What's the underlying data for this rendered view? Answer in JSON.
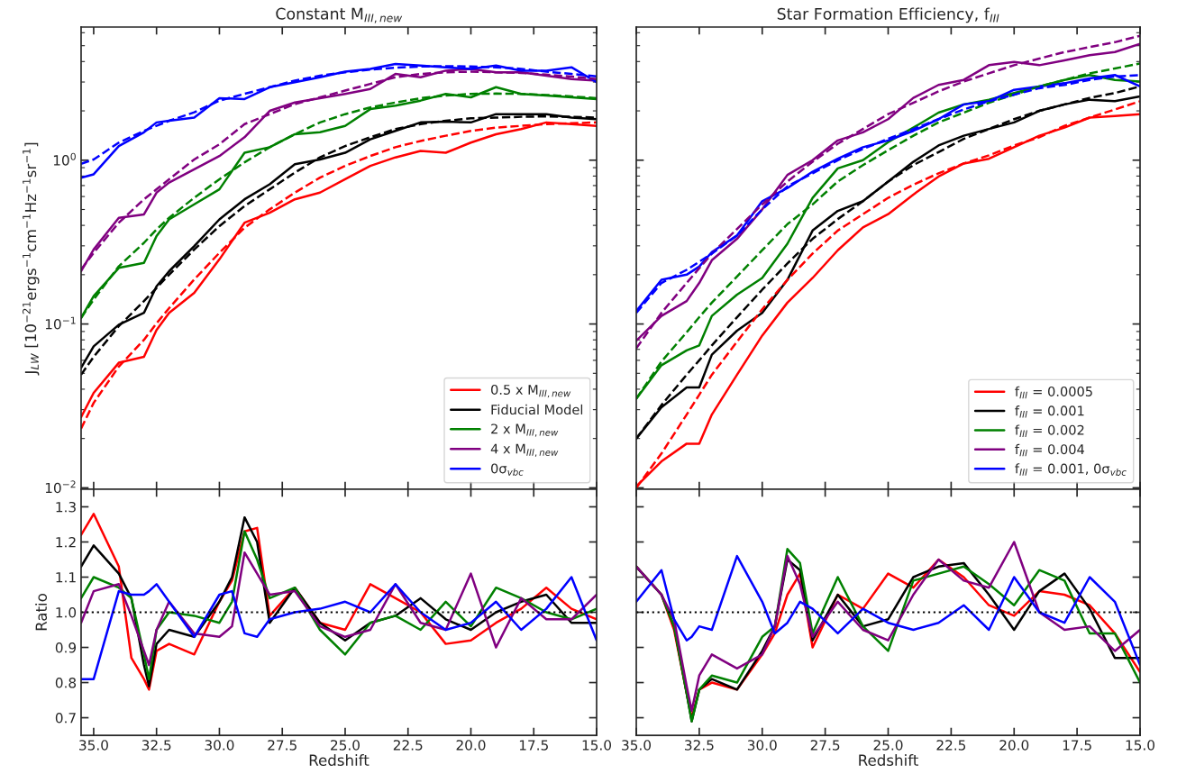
{
  "chart_data": [
    {
      "type": "line",
      "title": "Constant M$_{III,new}$",
      "ylabel": "J$_{LW}$ [10$^{−21}$ergs$^{−1}$cm$^{−1}$Hz$^{−1}$sr$^{−1}$]",
      "log": true,
      "legend": "bottom right",
      "tick_labels": "y",
      "xlim": [
        35.5,
        15.0
      ],
      "xticks": [
        35.0,
        32.5,
        30.0,
        27.5,
        25.0,
        22.5,
        20.0,
        17.5,
        15.0
      ],
      "ylim": [
        0.0098,
        6.5
      ],
      "yticks": [
        {
          "value": 0.01,
          "label": "10$^{−2}$"
        },
        {
          "value": 0.1,
          "label": "10$^{−1}$"
        },
        {
          "value": 1,
          "label": "10$^{0}$"
        }
      ],
      "x": [
        35.5,
        35,
        34,
        33,
        32.5,
        32,
        31,
        30,
        29,
        28,
        27,
        26,
        25,
        24,
        23,
        22,
        21,
        20,
        19,
        18,
        17,
        16,
        15
      ],
      "series": [
        {
          "name": "0.5 x M$_{III,new}$",
          "color": "#ff0000",
          "values": [
            0.027,
            0.038,
            0.058,
            0.063,
            0.092,
            0.117,
            0.155,
            0.248,
            0.415,
            0.478,
            0.577,
            0.634,
            0.765,
            0.923,
            1.04,
            1.14,
            1.11,
            1.28,
            1.44,
            1.55,
            1.7,
            1.66,
            1.62
          ]
        },
        {
          "name": "Fiducial Model",
          "color": "#000000",
          "values": [
            0.054,
            0.073,
            0.099,
            0.117,
            0.17,
            0.21,
            0.299,
            0.435,
            0.577,
            0.713,
            0.945,
            1.01,
            1.11,
            1.34,
            1.51,
            1.7,
            1.72,
            1.7,
            1.91,
            1.91,
            1.91,
            1.82,
            1.78
          ]
        },
        {
          "name": "2 x M$_{III,new}$",
          "color": "#008000",
          "values": [
            0.109,
            0.148,
            0.22,
            0.236,
            0.344,
            0.435,
            0.538,
            0.664,
            1.11,
            1.2,
            1.44,
            1.48,
            1.62,
            2.05,
            2.15,
            2.31,
            2.54,
            2.42,
            2.79,
            2.54,
            2.48,
            2.42,
            2.36
          ]
        },
        {
          "name": "4 x M$_{III,new}$",
          "color": "#800080",
          "values": [
            0.21,
            0.285,
            0.445,
            0.467,
            0.634,
            0.73,
            0.88,
            1.06,
            1.38,
            2.0,
            2.25,
            2.39,
            2.54,
            2.72,
            3.36,
            3.21,
            3.52,
            3.61,
            3.44,
            3.44,
            3.28,
            3.13,
            3.06
          ]
        },
        {
          "name": "0σ$_{vbc}$",
          "color": "#0000ff",
          "values": [
            0.78,
            0.82,
            1.22,
            1.48,
            1.7,
            1.74,
            1.82,
            2.39,
            2.36,
            2.79,
            2.99,
            3.21,
            3.47,
            3.61,
            3.87,
            3.78,
            3.69,
            3.61,
            3.78,
            3.52,
            3.52,
            3.69,
            2.99
          ]
        },
        {
          "color": "#ff0000",
          "line_style": "dashed",
          "values": [
            0.023,
            0.033,
            0.055,
            0.08,
            0.101,
            0.125,
            0.187,
            0.272,
            0.387,
            0.501,
            0.634,
            0.783,
            0.923,
            1.06,
            1.2,
            1.31,
            1.41,
            1.51,
            1.58,
            1.62,
            1.66,
            1.68,
            1.7
          ]
        },
        {
          "color": "#000000",
          "line_style": "dashed",
          "values": [
            0.049,
            0.063,
            0.097,
            0.138,
            0.166,
            0.2,
            0.285,
            0.396,
            0.525,
            0.664,
            0.84,
            1.04,
            1.22,
            1.38,
            1.55,
            1.66,
            1.74,
            1.8,
            1.82,
            1.84,
            1.85,
            1.84,
            1.82
          ]
        },
        {
          "color": "#008000",
          "line_style": "dashed",
          "values": [
            0.109,
            0.141,
            0.225,
            0.313,
            0.378,
            0.445,
            0.59,
            0.765,
            0.97,
            1.2,
            1.44,
            1.7,
            1.91,
            2.1,
            2.25,
            2.39,
            2.48,
            2.54,
            2.55,
            2.54,
            2.5,
            2.45,
            2.39
          ]
        },
        {
          "color": "#800080",
          "line_style": "dashed",
          "values": [
            0.215,
            0.272,
            0.415,
            0.577,
            0.664,
            0.765,
            1.01,
            1.25,
            1.66,
            1.91,
            2.2,
            2.42,
            2.66,
            2.92,
            3.21,
            3.36,
            3.44,
            3.47,
            3.44,
            3.41,
            3.33,
            3.24,
            3.13
          ]
        },
        {
          "color": "#0000ff",
          "line_style": "dashed",
          "values": [
            0.95,
            1.01,
            1.28,
            1.51,
            1.62,
            1.74,
            1.96,
            2.31,
            2.54,
            2.79,
            3.06,
            3.28,
            3.44,
            3.57,
            3.67,
            3.73,
            3.75,
            3.73,
            3.69,
            3.61,
            3.47,
            3.36,
            3.25
          ]
        }
      ]
    },
    {
      "type": "line",
      "title": "Star Formation Efficiency, f$_{III}$",
      "log": true,
      "legend": "bottom right",
      "tick_labels": false,
      "xlim": [
        35.0,
        15.0
      ],
      "xticks": [
        {
          "value": 35,
          "label": null
        },
        {
          "value": 32.5,
          "label": null
        },
        {
          "value": 30,
          "label": null
        },
        {
          "value": 27.5,
          "label": null
        },
        {
          "value": 25,
          "label": null
        },
        {
          "value": 22.5,
          "label": null
        },
        {
          "value": 20,
          "label": null
        },
        {
          "value": 17.5,
          "label": null
        },
        {
          "value": 15,
          "label": null
        }
      ],
      "ylim": [
        0.0098,
        6.5
      ],
      "yticks": [
        {
          "value": 0.01,
          "label": null
        },
        {
          "value": 0.1,
          "label": null
        },
        {
          "value": 1,
          "label": null
        }
      ],
      "x": [
        35,
        34,
        33,
        32.5,
        32,
        31,
        30,
        29,
        28,
        27,
        26,
        25,
        24,
        23,
        22,
        21,
        20,
        19,
        18,
        17,
        16,
        15
      ],
      "series": [
        {
          "name": "f$_{III}$ = 0.0005",
          "color": "#ff0000",
          "values": [
            0.0102,
            0.0145,
            0.0186,
            0.0186,
            0.028,
            0.049,
            0.085,
            0.135,
            0.191,
            0.282,
            0.389,
            0.468,
            0.617,
            0.794,
            0.955,
            1.02,
            1.2,
            1.41,
            1.58,
            1.82,
            1.86,
            1.91
          ]
        },
        {
          "name": "f$_{III}$ = 0.001",
          "color": "#000000",
          "values": [
            0.02,
            0.031,
            0.041,
            0.041,
            0.065,
            0.091,
            0.117,
            0.186,
            0.372,
            0.49,
            0.562,
            0.741,
            0.977,
            1.23,
            1.41,
            1.55,
            1.7,
            2.0,
            2.19,
            2.34,
            2.29,
            2.45
          ]
        },
        {
          "name": "f$_{III}$ = 0.002",
          "color": "#008000",
          "values": [
            0.035,
            0.056,
            0.069,
            0.074,
            0.112,
            0.151,
            0.191,
            0.309,
            0.589,
            0.891,
            1.0,
            1.29,
            1.58,
            1.95,
            2.19,
            2.34,
            2.57,
            2.82,
            3.09,
            3.31,
            3.09,
            3.02
          ]
        },
        {
          "name": "f$_{III}$ = 0.004",
          "color": "#800080",
          "values": [
            0.079,
            0.112,
            0.138,
            0.178,
            0.245,
            0.331,
            0.501,
            0.813,
            1.0,
            1.32,
            1.48,
            1.78,
            2.4,
            2.88,
            3.09,
            3.8,
            3.98,
            3.8,
            4.07,
            4.37,
            4.57,
            5.13
          ]
        },
        {
          "name": "f$_{III}$ = 0.001, 0σ$_{vbc}$",
          "color": "#0000ff",
          "values": [
            0.12,
            0.186,
            0.2,
            0.224,
            0.275,
            0.347,
            0.562,
            0.676,
            0.851,
            1.02,
            1.2,
            1.32,
            1.51,
            1.78,
            2.19,
            2.29,
            2.69,
            2.82,
            2.95,
            3.16,
            3.31,
            2.82
          ]
        },
        {
          "color": "#ff0000",
          "line_style": "dashed",
          "values": [
            0.01,
            0.0162,
            0.028,
            0.037,
            0.049,
            0.078,
            0.123,
            0.186,
            0.269,
            0.372,
            0.468,
            0.589,
            0.708,
            0.832,
            0.955,
            1.07,
            1.23,
            1.38,
            1.62,
            1.82,
            2.04,
            2.29
          ]
        },
        {
          "color": "#000000",
          "line_style": "dashed",
          "values": [
            0.02,
            0.032,
            0.049,
            0.06,
            0.074,
            0.11,
            0.162,
            0.234,
            0.331,
            0.437,
            0.562,
            0.741,
            0.933,
            1.12,
            1.35,
            1.55,
            1.78,
            2.0,
            2.19,
            2.4,
            2.57,
            2.82
          ]
        },
        {
          "color": "#008000",
          "line_style": "dashed",
          "values": [
            0.035,
            0.059,
            0.089,
            0.11,
            0.135,
            0.195,
            0.282,
            0.407,
            0.537,
            0.741,
            0.933,
            1.15,
            1.41,
            1.7,
            1.95,
            2.24,
            2.51,
            2.82,
            3.09,
            3.39,
            3.63,
            3.89
          ]
        },
        {
          "color": "#800080",
          "line_style": "dashed",
          "values": [
            0.071,
            0.117,
            0.178,
            0.219,
            0.269,
            0.38,
            0.537,
            0.741,
            0.977,
            1.26,
            1.55,
            1.91,
            2.24,
            2.63,
            3.02,
            3.39,
            3.8,
            4.17,
            4.57,
            4.9,
            5.25,
            5.75
          ]
        },
        {
          "color": "#0000ff",
          "line_style": "dashed",
          "values": [
            0.117,
            0.178,
            0.214,
            0.24,
            0.269,
            0.347,
            0.501,
            0.692,
            0.832,
            1.0,
            1.17,
            1.35,
            1.55,
            1.78,
            2.04,
            2.29,
            2.51,
            2.75,
            2.88,
            3.09,
            3.24,
            3.31
          ]
        }
      ]
    },
    {
      "type": "line",
      "xlabel": "Redshift",
      "ylabel": "Ratio",
      "xlim": [
        35.5,
        15.0
      ],
      "xticks": [
        {
          "value": 35,
          "label": "35.0"
        },
        32.5,
        {
          "value": 30,
          "label": "30.0"
        },
        27.5,
        {
          "value": 25,
          "label": "25.0"
        },
        22.5,
        {
          "value": 20,
          "label": "20.0"
        },
        17.5,
        {
          "value": 15,
          "label": "15.0"
        }
      ],
      "ylim": [
        0.65,
        1.35
      ],
      "yticks": [
        0.7,
        0.8,
        0.9,
        {
          "value": 1,
          "label": "1.0"
        },
        1.1,
        1.2,
        1.3
      ],
      "ref_lines": [
        {
          "axis": "y",
          "value": 1.0,
          "color": "#000000",
          "line_style": "dotted"
        }
      ],
      "x": [
        35.5,
        35,
        34,
        33.5,
        33,
        32.8,
        32.5,
        32,
        31,
        30,
        29.5,
        29,
        28.5,
        28,
        27,
        26,
        25,
        24,
        23,
        22,
        21,
        20,
        19,
        18,
        17,
        16,
        15
      ],
      "series": [
        {
          "color": "#ff0000",
          "values": [
            1.22,
            1.28,
            1.13,
            0.87,
            0.81,
            0.78,
            0.89,
            0.91,
            0.88,
            1.03,
            1.09,
            1.23,
            1.24,
            0.99,
            1.07,
            0.97,
            0.95,
            1.08,
            1.04,
            1.0,
            0.91,
            0.92,
            0.97,
            1.01,
            1.07,
            1.01,
            0.98
          ]
        },
        {
          "color": "#000000",
          "values": [
            1.13,
            1.19,
            1.11,
            1.04,
            0.85,
            0.79,
            0.91,
            0.95,
            0.93,
            1.03,
            1.1,
            1.27,
            1.2,
            0.97,
            1.07,
            0.97,
            0.92,
            0.97,
            0.99,
            1.04,
            0.98,
            0.95,
            1.0,
            1.03,
            1.05,
            0.97,
            0.97
          ]
        },
        {
          "color": "#008000",
          "values": [
            1.04,
            1.1,
            1.07,
            1.04,
            0.88,
            0.81,
            0.95,
            1.0,
            0.99,
            0.97,
            1.03,
            1.23,
            1.15,
            1.04,
            1.07,
            0.95,
            0.88,
            0.97,
            0.99,
            0.95,
            1.03,
            0.96,
            1.07,
            1.04,
            1.0,
            0.98,
            1.01
          ]
        },
        {
          "color": "#800080",
          "values": [
            0.97,
            1.06,
            1.08,
            0.99,
            0.89,
            0.85,
            0.95,
            1.03,
            0.94,
            0.93,
            0.96,
            1.17,
            1.11,
            1.05,
            1.06,
            0.96,
            0.93,
            0.95,
            1.08,
            0.97,
            0.95,
            1.11,
            0.9,
            1.04,
            0.98,
            0.98,
            1.05
          ]
        },
        {
          "color": "#0000ff",
          "values": [
            0.81,
            0.81,
            1.06,
            1.05,
            1.05,
            1.06,
            1.08,
            1.03,
            0.93,
            1.05,
            1.06,
            0.94,
            0.93,
            0.98,
            1.0,
            1.01,
            1.03,
            1.0,
            1.08,
            1.0,
            0.95,
            0.97,
            1.03,
            0.95,
            1.01,
            1.1,
            0.92
          ]
        }
      ]
    },
    {
      "type": "line",
      "xlabel": "Redshift",
      "tick_labels": "x",
      "xlim": [
        35.0,
        15.0
      ],
      "xticks": [
        {
          "value": 35,
          "label": "35.0"
        },
        32.5,
        {
          "value": 30,
          "label": "30.0"
        },
        27.5,
        {
          "value": 25,
          "label": "25.0"
        },
        22.5,
        {
          "value": 20,
          "label": "20.0"
        },
        17.5,
        {
          "value": 15,
          "label": "15.0"
        }
      ],
      "ylim": [
        0.65,
        1.35
      ],
      "yticks": [
        {
          "value": 0.7,
          "label": null
        },
        {
          "value": 0.8,
          "label": null
        },
        {
          "value": 0.9,
          "label": null
        },
        {
          "value": 1,
          "label": null
        },
        {
          "value": 1.1,
          "label": null
        },
        {
          "value": 1.2,
          "label": null
        },
        {
          "value": 1.3,
          "label": null
        }
      ],
      "ref_lines": [
        {
          "axis": "y",
          "value": 1.0,
          "color": "#000000",
          "line_style": "dotted"
        }
      ],
      "x": [
        35,
        34,
        33.5,
        33,
        32.8,
        32.5,
        32,
        31,
        30,
        29.5,
        29,
        28.5,
        28,
        27,
        26,
        25,
        24,
        23,
        22,
        21,
        20,
        19,
        18,
        17,
        16,
        15
      ],
      "series": [
        {
          "color": "#ff0000",
          "values": [
            1.13,
            1.05,
            0.95,
            0.77,
            0.7,
            0.78,
            0.8,
            0.78,
            0.88,
            0.94,
            1.05,
            1.11,
            0.9,
            1.05,
            1.01,
            1.11,
            1.07,
            1.15,
            1.1,
            1.02,
            0.99,
            1.06,
            1.05,
            1.02,
            0.94,
            0.83
          ]
        },
        {
          "color": "#000000",
          "values": [
            1.13,
            1.05,
            0.96,
            0.77,
            0.69,
            0.78,
            0.81,
            0.78,
            0.89,
            0.96,
            1.15,
            1.12,
            0.92,
            1.05,
            0.96,
            0.98,
            1.1,
            1.13,
            1.14,
            1.05,
            0.95,
            1.06,
            1.11,
            1.01,
            0.87,
            0.87
          ]
        },
        {
          "color": "#008000",
          "values": [
            1.13,
            1.05,
            0.96,
            0.77,
            0.69,
            0.78,
            0.82,
            0.8,
            0.93,
            0.96,
            1.18,
            1.14,
            0.94,
            1.1,
            0.96,
            0.89,
            1.09,
            1.11,
            1.13,
            1.08,
            1.02,
            1.12,
            1.09,
            0.94,
            0.94,
            0.8
          ]
        },
        {
          "color": "#800080",
          "values": [
            1.13,
            1.05,
            0.98,
            0.79,
            0.72,
            0.82,
            0.88,
            0.84,
            0.88,
            0.96,
            1.16,
            1.08,
            0.93,
            1.03,
            0.95,
            0.92,
            1.05,
            1.15,
            1.09,
            1.07,
            1.2,
            1.0,
            0.95,
            0.96,
            0.89,
            0.95
          ]
        },
        {
          "color": "#0000ff",
          "values": [
            1.03,
            1.12,
            0.98,
            0.92,
            0.93,
            0.96,
            0.95,
            1.16,
            1.03,
            0.94,
            0.97,
            1.03,
            1.01,
            0.94,
            1.01,
            0.97,
            0.95,
            0.97,
            1.02,
            0.95,
            1.1,
            1.0,
            0.97,
            1.1,
            1.03,
            0.85
          ]
        }
      ]
    }
  ]
}
